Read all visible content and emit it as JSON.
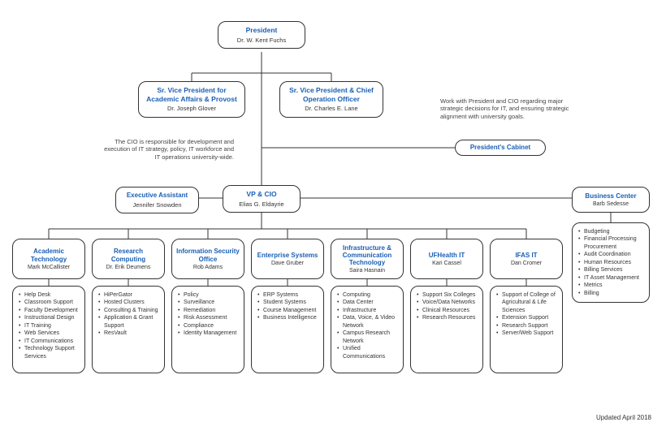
{
  "type": "org-chart",
  "background_color": "#ffffff",
  "border_color": "#333333",
  "accent_color": "#1a5fb4",
  "text_color": "#333333",
  "border_radius": 10,
  "president": {
    "title": "President",
    "name": "Dr. W. Kent Fuchs"
  },
  "svp_academic": {
    "title": "Sr. Vice President for Academic Affairs & Provost",
    "name": "Dr. Joseph Glover"
  },
  "svp_coo": {
    "title": "Sr. Vice President & Chief Operation Officer",
    "name": "Dr. Charles E. Lane"
  },
  "cabinet": {
    "title": "President's Cabinet"
  },
  "exec_asst": {
    "title": "Executive Assistant",
    "name": "Jennifer Snowden"
  },
  "vp_cio": {
    "title": "VP & CIO",
    "name": "Elias G. Eldayrie"
  },
  "business_center": {
    "title": "Business Center",
    "name": "Barb Sedesse"
  },
  "note_cio": "The CIO is responsible for development and execution of IT strategy, policy, IT workforce and IT operations university-wide.",
  "note_cabinet": "Work with President and CIO regarding major strategic decisions for IT, and ensuring strategic alignment with university goals.",
  "business_items": [
    "Budgeting",
    "Financial Processing Procurement",
    "Audit Coordination",
    "Human Resources",
    "Billing Services",
    "IT Asset Management",
    "Metrics",
    "Billing"
  ],
  "departments": [
    {
      "title": "Academic Technology",
      "name": "Mark McCallister",
      "items": [
        "Help Desk",
        "Classroom Support",
        "Faculty Development",
        "Instructional Design",
        "IT Training",
        "Web Services",
        "IT Communications",
        "Technology Support Services"
      ]
    },
    {
      "title": "Research Computing",
      "name": "Dr. Erik Deumens",
      "items": [
        "HiPerGator",
        "Hosted Clusters",
        "Consulting & Training",
        "Application & Grant Support",
        "ResVault"
      ]
    },
    {
      "title": "Information Security Office",
      "name": "Rob Adams",
      "items": [
        "Policy",
        "Surveillance",
        "Remediation",
        "Risk Assessment",
        "Compliance",
        "Identity Management"
      ]
    },
    {
      "title": "Enterprise Systems",
      "name": "Dave Gruber",
      "items": [
        "ERP Systems",
        "Student Systems",
        "Course Management",
        "Business Intelligence"
      ]
    },
    {
      "title": "Infrastructure & Communication Technology",
      "name": "Saira Hasnain",
      "items": [
        "Computing",
        "Data Center",
        "Infrastructure",
        "Data, Voice, & Video Network",
        "Campus Research Network",
        "Unified Communications"
      ]
    },
    {
      "title": "UFHealth IT",
      "name": "Kari Cassel",
      "items": [
        "Support Six Colleges",
        "Voice/Data Networks",
        "Clinical Resources",
        "Research Resources"
      ]
    },
    {
      "title": "IFAS IT",
      "name": "Dan Cromer",
      "items": [
        "Support of College of Agricultural & Life Sciences",
        "Extension Support",
        "Research Support",
        "Server/Web Support"
      ]
    }
  ],
  "footer": "Updated April 2018"
}
